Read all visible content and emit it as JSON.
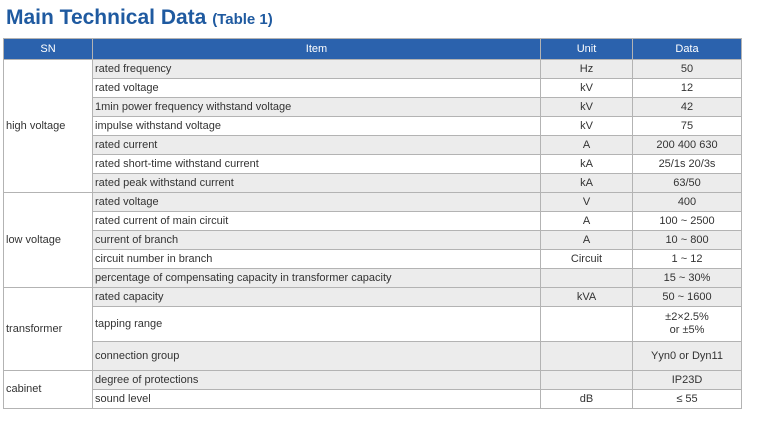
{
  "title": "Main Technical Data",
  "table_label": "(Table 1)",
  "headers": {
    "sn": "SN",
    "item": "Item",
    "unit": "Unit",
    "data": "Data"
  },
  "groups": [
    {
      "label": "high voltage",
      "rows": [
        {
          "item": "rated frequency",
          "unit": "Hz",
          "data": "50"
        },
        {
          "item": "rated voltage",
          "unit": "kV",
          "data": "12"
        },
        {
          "item": "1min power frequency withstand voltage",
          "unit": "kV",
          "data": "42"
        },
        {
          "item": "impulse withstand voltage",
          "unit": "kV",
          "data": "75"
        },
        {
          "item": "rated current",
          "unit": "A",
          "data": "200 400 630"
        },
        {
          "item": "rated short-time withstand current",
          "unit": "kA",
          "data": "25/1s  20/3s"
        },
        {
          "item": "rated peak withstand current",
          "unit": "kA",
          "data": "63/50"
        }
      ]
    },
    {
      "label": "low voltage",
      "rows": [
        {
          "item": "rated voltage",
          "unit": "V",
          "data": "400"
        },
        {
          "item": "rated current of main circuit",
          "unit": "A",
          "data": "100 ~ 2500"
        },
        {
          "item": "current of branch",
          "unit": "A",
          "data": "10 ~ 800"
        },
        {
          "item": "circuit number in branch",
          "unit": "Circuit",
          "data": "1 ~ 12"
        },
        {
          "item": "percentage of compensating capacity in transformer capacity",
          "unit": "",
          "data": "15 ~ 30%"
        }
      ]
    },
    {
      "label": "transformer",
      "rows": [
        {
          "item": "rated capacity",
          "unit": "kVA",
          "data": "50 ~ 1600"
        },
        {
          "item": "tapping range",
          "unit": "",
          "data": "±2×2.5%\nor ±5%"
        },
        {
          "item": "connection group",
          "unit": "",
          "data": "Yyn0 or Dyn11"
        }
      ]
    },
    {
      "label": "cabinet",
      "rows": [
        {
          "item": "degree of protections",
          "unit": "",
          "data": "IP23D"
        },
        {
          "item": "sound level",
          "unit": "dB",
          "data": "≤ 55"
        }
      ]
    }
  ]
}
